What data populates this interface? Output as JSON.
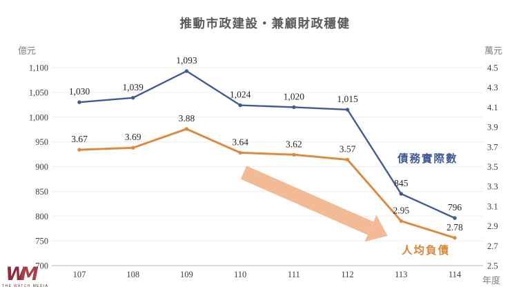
{
  "title": "推動市政建設‧兼顧財政穩健",
  "chart_data": {
    "type": "line",
    "categories": [
      "107",
      "108",
      "109",
      "110",
      "111",
      "112",
      "113",
      "114"
    ],
    "series": [
      {
        "name": "債務實際數",
        "axis": "left",
        "color": "#3f5a96",
        "values": [
          1030,
          1039,
          1093,
          1024,
          1020,
          1015,
          845,
          796
        ],
        "labels": [
          "1,030",
          "1,039",
          "1,093",
          "1,024",
          "1,020",
          "1,015",
          "845",
          "796"
        ]
      },
      {
        "name": "人均負債",
        "axis": "right",
        "color": "#dc8a3f",
        "values": [
          3.67,
          3.69,
          3.88,
          3.64,
          3.62,
          3.57,
          2.95,
          2.78
        ],
        "labels": [
          "3.67",
          "3.69",
          "3.88",
          "3.64",
          "3.62",
          "3.57",
          "2.95",
          "2.78"
        ]
      }
    ],
    "left_axis": {
      "unit": "億元",
      "min": 700,
      "max": 1100,
      "step": 50,
      "ticks": [
        "1,100",
        "1,050",
        "1,000",
        "950",
        "900",
        "850",
        "800",
        "750",
        "700"
      ]
    },
    "right_axis": {
      "unit": "萬元",
      "min": 2.5,
      "max": 4.5,
      "step": 0.2,
      "ticks": [
        "4.5",
        "4.3",
        "4.1",
        "3.9",
        "3.7",
        "3.5",
        "3.3",
        "3.1",
        "2.9",
        "2.7",
        "2.5"
      ]
    },
    "x_axis": {
      "unit": "年度"
    },
    "grid": true,
    "legend_position": "inline-right",
    "annotations": {
      "trend_arrow": "down-right",
      "arrow_color": "#f2b38b"
    }
  },
  "logo": {
    "monogram_w": "W",
    "monogram_m": "M",
    "tagline_1": "THE",
    "tagline_2": "WATCH",
    "tagline_3": "MEDIA"
  }
}
